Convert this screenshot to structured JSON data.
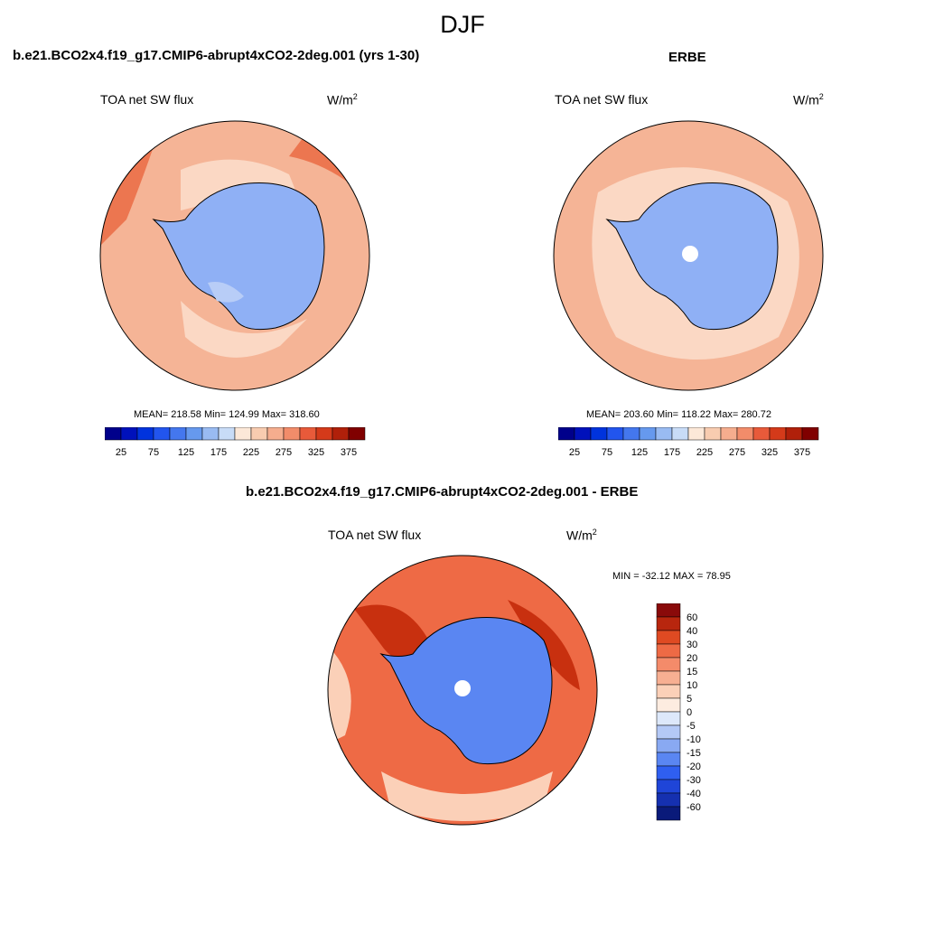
{
  "figure_title": "DJF",
  "panels": {
    "model": {
      "header": "b.e21.BCO2x4.f19_g17.CMIP6-abrupt4xCO2-2deg.001 (yrs 1-30)",
      "variable_label": "TOA net SW flux",
      "units_base": "W/m",
      "units_exp": "2",
      "stats_text": "MEAN= 218.58  Min= 124.99  Max= 318.60",
      "stats": {
        "mean": 218.58,
        "min": 124.99,
        "max": 318.6
      }
    },
    "obs": {
      "header": "ERBE",
      "variable_label": "TOA net SW flux",
      "units_base": "W/m",
      "units_exp": "2",
      "stats_text": "MEAN= 203.60  Min= 118.22  Max= 280.72",
      "stats": {
        "mean": 203.6,
        "min": 118.22,
        "max": 280.72
      }
    },
    "diff": {
      "header": "b.e21.BCO2x4.f19_g17.CMIP6-abrupt4xCO2-2deg.001 - ERBE",
      "variable_label": "TOA net SW flux",
      "units_base": "W/m",
      "units_exp": "2",
      "minmax_text": "MIN = -32.12 MAX =  78.95",
      "stats": {
        "min": -32.12,
        "max": 78.95
      }
    }
  },
  "colorbars": {
    "abs": {
      "colors": [
        "#00008b",
        "#0011bb",
        "#0033dd",
        "#2255ee",
        "#4477ee",
        "#6699ee",
        "#99bbf2",
        "#c8dcf7",
        "#fce8d8",
        "#f8ccb0",
        "#f5ad8e",
        "#f28c6a",
        "#e85a3a",
        "#d43a1a",
        "#b0200a",
        "#800000"
      ],
      "tick_labels": [
        "25",
        "75",
        "125",
        "175",
        "225",
        "275",
        "325",
        "375"
      ]
    },
    "diff": {
      "colors": [
        "#0a1a7a",
        "#1530b0",
        "#1f45d8",
        "#2f5ff0",
        "#5a86f2",
        "#89a9f2",
        "#b4c9f6",
        "#dde8fa",
        "#fdece0",
        "#fbd0b8",
        "#f7af92",
        "#f48b6a",
        "#ee6a45",
        "#df4a22",
        "#b8260e",
        "#8a0a0a"
      ],
      "tick_labels": [
        "60",
        "40",
        "30",
        "20",
        "15",
        "10",
        "5",
        "0",
        "-5",
        "-10",
        "-15",
        "-20",
        "-30",
        "-40",
        "-60"
      ]
    }
  },
  "map_palette": {
    "ocean_warm": "#f5b496",
    "ocean_light": "#fbd8c4",
    "ocean_hot": "#ec7650",
    "ice": "#8fb0f5",
    "ice_light": "#b8cdf7",
    "diff_warm": "#ee6a45",
    "diff_hot": "#c8300f",
    "diff_light": "#fbd0b8",
    "diff_cool": "#5a86f2"
  }
}
